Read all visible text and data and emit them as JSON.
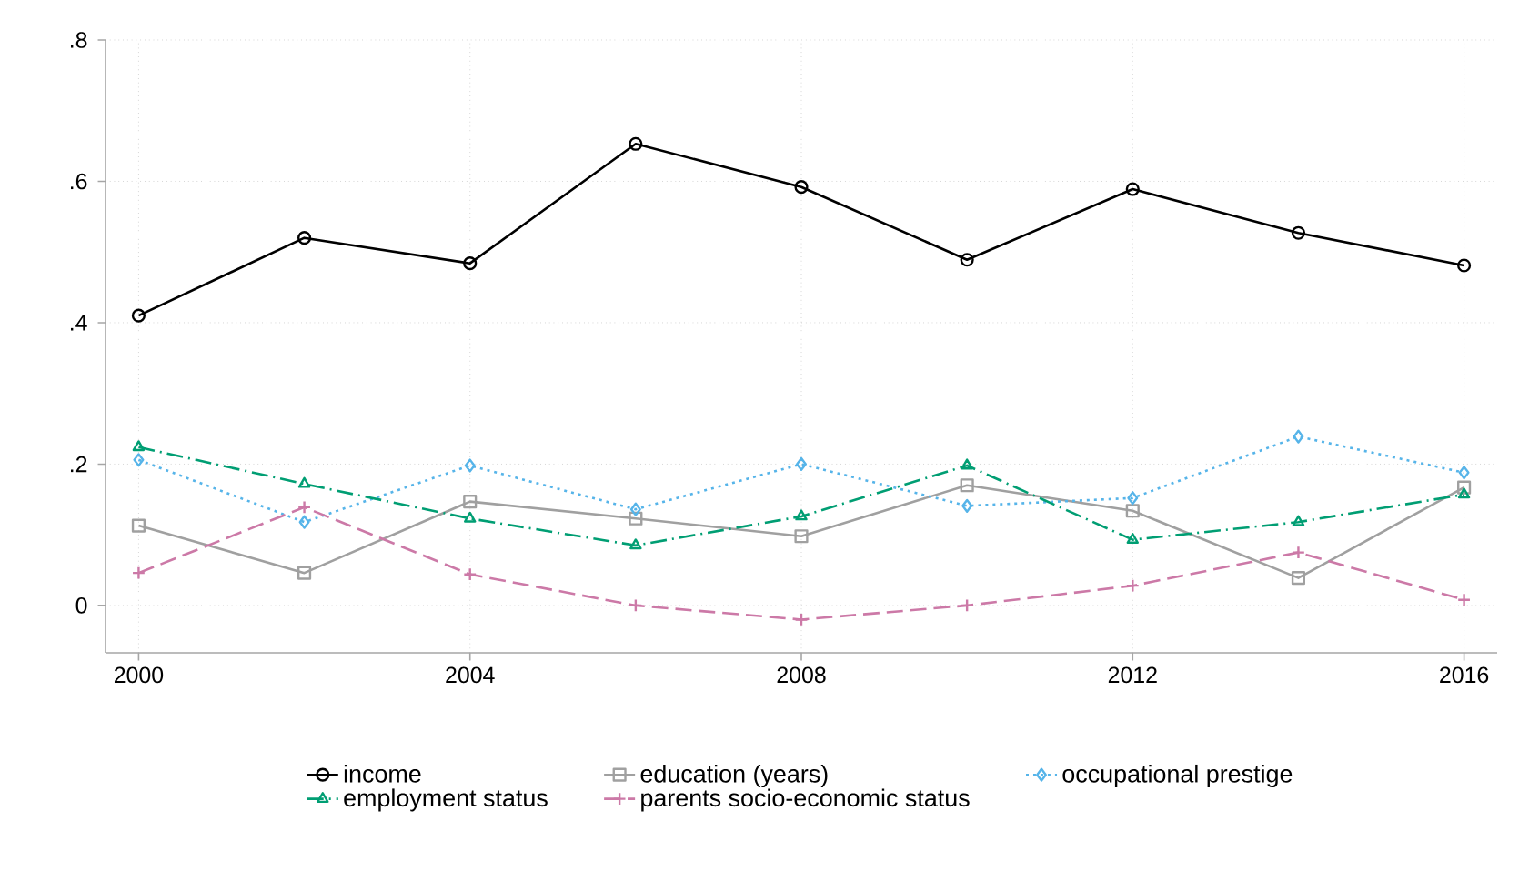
{
  "chart_data": {
    "type": "line",
    "x": [
      2000,
      2002,
      2004,
      2006,
      2008,
      2010,
      2012,
      2014,
      2016
    ],
    "xlim": [
      1999.6,
      2016.4
    ],
    "ylim": [
      -0.067,
      0.8
    ],
    "xticks": [
      2000,
      2004,
      2008,
      2012,
      2016
    ],
    "yticks": [
      {
        "value": 0,
        "label": "0"
      },
      {
        "value": 0.2,
        "label": ".2"
      },
      {
        "value": 0.4,
        "label": ".4"
      },
      {
        "value": 0.6,
        "label": ".6"
      },
      {
        "value": 0.8,
        "label": ".8"
      }
    ],
    "grid": true,
    "legend": "bottom",
    "series": [
      {
        "name": "income",
        "color": "#000000",
        "marker": "circle",
        "line_style": "solid",
        "values": [
          0.41,
          0.52,
          0.484,
          0.653,
          0.592,
          0.489,
          0.589,
          0.527,
          0.481
        ]
      },
      {
        "name": "education (years)",
        "color": "#a0a0a0",
        "marker": "square",
        "line_style": "solid",
        "values": [
          0.113,
          0.046,
          0.147,
          0.123,
          0.098,
          0.17,
          0.134,
          0.039,
          0.167
        ]
      },
      {
        "name": "occupational prestige",
        "color": "#56b4e9",
        "marker": "diamond",
        "line_style": "dotted",
        "values": [
          0.206,
          0.118,
          0.198,
          0.136,
          0.2,
          0.141,
          0.152,
          0.239,
          0.188
        ]
      },
      {
        "name": "employment status",
        "color": "#009e73",
        "marker": "triangle",
        "line_style": "dashdot",
        "values": [
          0.224,
          0.172,
          0.123,
          0.085,
          0.126,
          0.198,
          0.093,
          0.118,
          0.157
        ]
      },
      {
        "name": "parents socio-economic status",
        "color": "#cc79a7",
        "marker": "cross",
        "line_style": "dashed",
        "values": [
          0.046,
          0.139,
          0.044,
          0.0,
          -0.02,
          0.0,
          0.028,
          0.075,
          0.008
        ]
      }
    ]
  }
}
